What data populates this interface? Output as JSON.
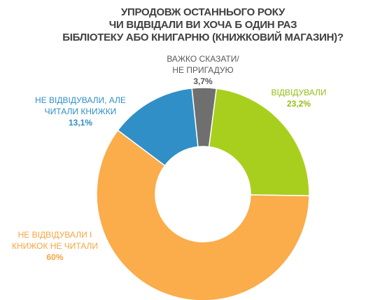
{
  "chart_data": {
    "type": "donut",
    "title": [
      "УПРОДОВЖ ОСТАННЬОГО РОКУ",
      "ЧИ ВІДВІДАЛИ ВИ ХОЧА Б ОДИН РАЗ",
      "БІБЛІОТЕКУ АБО КНИГАРНЮ (КНИЖКОВИЙ МАГАЗИН)?"
    ],
    "categories": [
      "ВАЖКО СКАЗАТИ/ НЕ ПРИГАДУЮ",
      "ВІДВІДУВАЛИ",
      "НЕ ВІДВІДУВАЛИ І КНИЖОК НЕ ЧИТАЛИ",
      "НЕ ВІДВІДУВАЛИ, АЛЕ ЧИТАЛИ КНИЖКИ"
    ],
    "values": [
      3.7,
      23.2,
      60,
      13.1
    ],
    "value_labels": [
      "3,7%",
      "23,2%",
      "60%",
      "13,1%"
    ],
    "colors": [
      "#706f6f",
      "#a8cf1d",
      "#fbac4b",
      "#2f8fc6"
    ],
    "label_colors": [
      "#595959",
      "#95bd16",
      "#f6a541",
      "#2f8fc6"
    ]
  }
}
